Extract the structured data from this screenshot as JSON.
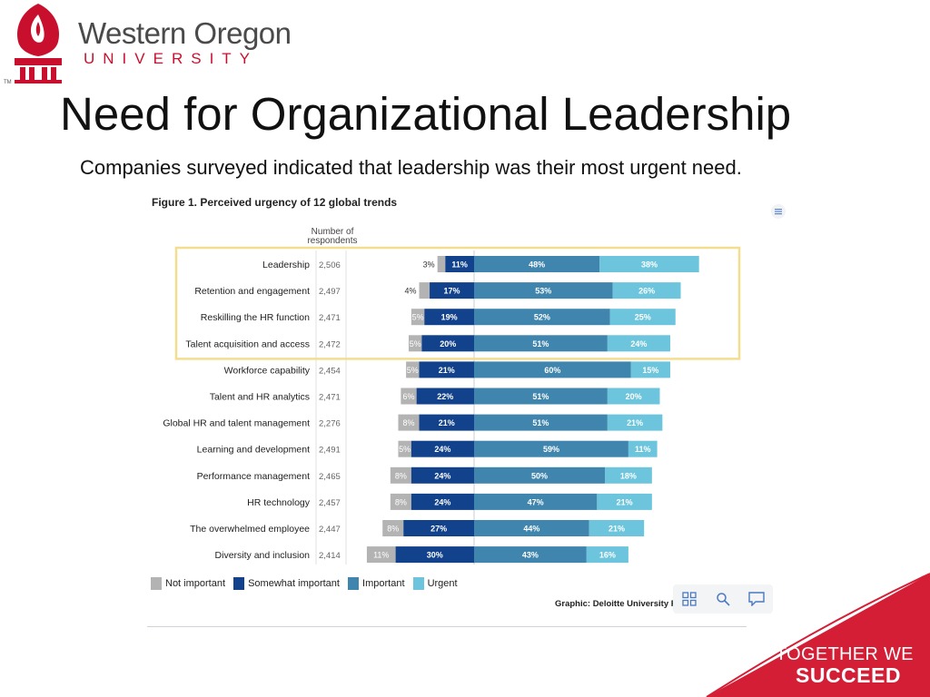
{
  "logo": {
    "name": "Western Oregon",
    "sub": "UNIVERSITY",
    "tm": "TM"
  },
  "slide": {
    "title": "Need for Organizational Leadership",
    "subtitle": "Companies surveyed indicated that leadership was their most urgent need."
  },
  "footer": {
    "tagline_1": "TOGETHER WE",
    "tagline_2": "SUCCEED"
  },
  "colors": {
    "not_important": "#b3b3b3",
    "somewhat_important": "#13428c",
    "important": "#3f85ad",
    "urgent": "#6cc5dc",
    "highlight_box": "#f3dd8f",
    "brand_red": "#d41e36"
  },
  "chart_data": {
    "type": "bar",
    "orientation": "horizontal-diverging",
    "title": "Figure 1. Perceived urgency of 12 global trends",
    "column_header": "Number of respondents",
    "categories": [
      "Leadership",
      "Retention and engagement",
      "Reskilling the HR function",
      "Talent acquisition and access",
      "Workforce capability",
      "Talent and HR analytics",
      "Global HR and talent management",
      "Learning and development",
      "Performance management",
      "HR technology",
      "The overwhelmed employee",
      "Diversity and inclusion"
    ],
    "respondents": [
      "2,506",
      "2,497",
      "2,471",
      "2,472",
      "2,454",
      "2,471",
      "2,276",
      "2,491",
      "2,465",
      "2,457",
      "2,447",
      "2,414"
    ],
    "series": [
      {
        "name": "Not important",
        "values": [
          3,
          4,
          5,
          5,
          5,
          6,
          8,
          5,
          8,
          8,
          8,
          11
        ]
      },
      {
        "name": "Somewhat important",
        "values": [
          11,
          17,
          19,
          20,
          21,
          22,
          21,
          24,
          24,
          24,
          27,
          30
        ]
      },
      {
        "name": "Important",
        "values": [
          48,
          53,
          52,
          51,
          60,
          51,
          51,
          59,
          50,
          47,
          44,
          43
        ]
      },
      {
        "name": "Urgent",
        "values": [
          38,
          26,
          25,
          24,
          15,
          20,
          21,
          11,
          18,
          21,
          21,
          16
        ]
      }
    ],
    "highlighted_categories": [
      "Leadership",
      "Retention and engagement",
      "Reskilling the HR function",
      "Talent acquisition and access"
    ],
    "legend": [
      "Not important",
      "Somewhat important",
      "Important",
      "Urgent"
    ],
    "legend_position": "bottom-left",
    "unit": "%",
    "credit": "Graphic: Deloitte University Pr"
  },
  "icons": {
    "menu": "hamburger-menu-icon",
    "toolbar": [
      "grid-icon",
      "search-icon",
      "comment-icon"
    ]
  }
}
